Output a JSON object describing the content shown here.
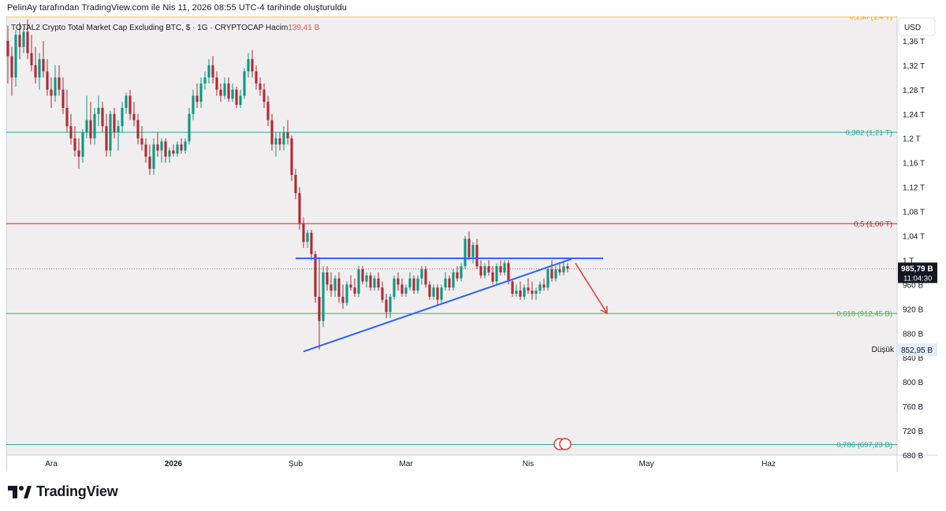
{
  "header": {
    "attribution": "PelinAy tarafından TradingView.com ile Nis 11, 2026 08:55 UTC-4 tarihinde oluşturuldu"
  },
  "legend": {
    "symbol": "TOTAL2",
    "description": "Crypto Total Market Cap Excluding BTC, $ · 1G · CRYPTOCAP",
    "volume_label": "Hacim",
    "volume_value": "139,41 B"
  },
  "currency_button": "USD",
  "branding": {
    "logo_text": "TradingView"
  },
  "colors": {
    "background": "#f0eeef",
    "up_candle": "#089981",
    "down_candle": "#b22833",
    "trendline": "#2962ff",
    "fib_0382": "#22ab94",
    "fib_05": "#b22833",
    "fib_0618": "#4caf50",
    "fib_0786": "#26a69a",
    "arrow": "#e53935"
  },
  "chart_data": {
    "type": "candlestick",
    "y_axis": {
      "unit": "USD",
      "scale": "linear",
      "range": [
        680000000000,
        1400000000000
      ],
      "tick_labels": [
        "1,36 T",
        "1,32 T",
        "1,28 T",
        "1,24 T",
        "1,2 T",
        "1,16 T",
        "1,12 T",
        "1,08 T",
        "1,04 T",
        "1 T",
        "960 B",
        "920 B",
        "880 B",
        "840 B",
        "800 B",
        "760 B",
        "720 B",
        "680 B"
      ]
    },
    "x_axis": {
      "tick_labels": [
        "Ara",
        "2026",
        "Şub",
        "Mar",
        "Nis",
        "May",
        "Haz"
      ],
      "range": [
        "2025-11-20",
        "2026-06-30"
      ]
    },
    "fib_levels": [
      {
        "label": "0,236 (1,4 T)",
        "value": 1400000000000
      },
      {
        "label": "0,382 (1,21 T)",
        "value": 1210000000000
      },
      {
        "label": "0,5 (1,06 T)",
        "value": 1060000000000
      },
      {
        "label": "0,618 (912,45 B)",
        "value": 912450000000
      },
      {
        "label": "0,786 (697,23 B)",
        "value": 697230000000
      }
    ],
    "current_price": {
      "label": "985,79 B",
      "value": 985790000000,
      "countdown": "11:04:30"
    },
    "low_marker": {
      "label": "Düşük",
      "value_label": "852,95 B",
      "value": 852950000000
    },
    "drawings": [
      {
        "type": "horizontal_resistance",
        "from": [
          "2026-02-01",
          1003000000000
        ],
        "to": [
          "2026-04-20",
          1003000000000
        ]
      },
      {
        "type": "ascending_trendline",
        "from": [
          "2026-02-03",
          850000000000
        ],
        "to": [
          "2026-04-12",
          1002000000000
        ]
      },
      {
        "type": "arrow_down",
        "from": [
          "2026-04-13",
          995000000000
        ],
        "to": [
          "2026-04-21",
          913000000000
        ]
      }
    ],
    "candles": [
      [
        "2025-11-20",
        1.36,
        1.385,
        1.29,
        1.335
      ],
      [
        "2025-11-21",
        1.335,
        1.35,
        1.27,
        1.3
      ],
      [
        "2025-11-22",
        1.3,
        1.378,
        1.285,
        1.37
      ],
      [
        "2025-11-23",
        1.37,
        1.39,
        1.33,
        1.35
      ],
      [
        "2025-11-24",
        1.35,
        1.38,
        1.34,
        1.375
      ],
      [
        "2025-11-25",
        1.375,
        1.395,
        1.33,
        1.34
      ],
      [
        "2025-11-26",
        1.34,
        1.37,
        1.31,
        1.32
      ],
      [
        "2025-11-27",
        1.32,
        1.35,
        1.29,
        1.3
      ],
      [
        "2025-11-28",
        1.3,
        1.34,
        1.28,
        1.33
      ],
      [
        "2025-11-29",
        1.33,
        1.36,
        1.3,
        1.31
      ],
      [
        "2025-11-30",
        1.31,
        1.33,
        1.27,
        1.28
      ],
      [
        "2025-12-01",
        1.28,
        1.3,
        1.25,
        1.27
      ],
      [
        "2025-12-02",
        1.27,
        1.32,
        1.26,
        1.3
      ],
      [
        "2025-12-03",
        1.3,
        1.32,
        1.27,
        1.28
      ],
      [
        "2025-12-04",
        1.28,
        1.3,
        1.24,
        1.25
      ],
      [
        "2025-12-05",
        1.25,
        1.28,
        1.21,
        1.22
      ],
      [
        "2025-12-06",
        1.22,
        1.24,
        1.19,
        1.2
      ],
      [
        "2025-12-07",
        1.2,
        1.22,
        1.17,
        1.18
      ],
      [
        "2025-12-08",
        1.18,
        1.2,
        1.15,
        1.17
      ],
      [
        "2025-12-09",
        1.17,
        1.215,
        1.16,
        1.21
      ],
      [
        "2025-12-10",
        1.21,
        1.27,
        1.2,
        1.23
      ],
      [
        "2025-12-11",
        1.23,
        1.26,
        1.19,
        1.2
      ],
      [
        "2025-12-12",
        1.2,
        1.25,
        1.19,
        1.24
      ],
      [
        "2025-12-13",
        1.24,
        1.27,
        1.22,
        1.25
      ],
      [
        "2025-12-14",
        1.25,
        1.26,
        1.21,
        1.22
      ],
      [
        "2025-12-15",
        1.22,
        1.24,
        1.17,
        1.18
      ],
      [
        "2025-12-16",
        1.18,
        1.245,
        1.17,
        1.24
      ],
      [
        "2025-12-17",
        1.24,
        1.25,
        1.2,
        1.21
      ],
      [
        "2025-12-18",
        1.21,
        1.23,
        1.18,
        1.22
      ],
      [
        "2025-12-19",
        1.22,
        1.26,
        1.21,
        1.25
      ],
      [
        "2025-12-20",
        1.25,
        1.275,
        1.24,
        1.27
      ],
      [
        "2025-12-21",
        1.27,
        1.28,
        1.23,
        1.24
      ],
      [
        "2025-12-22",
        1.24,
        1.26,
        1.22,
        1.23
      ],
      [
        "2025-12-23",
        1.23,
        1.24,
        1.19,
        1.2
      ],
      [
        "2025-12-24",
        1.2,
        1.22,
        1.18,
        1.19
      ],
      [
        "2025-12-25",
        1.19,
        1.2,
        1.16,
        1.17
      ],
      [
        "2025-12-26",
        1.17,
        1.19,
        1.14,
        1.15
      ],
      [
        "2025-12-27",
        1.15,
        1.2,
        1.14,
        1.19
      ],
      [
        "2025-12-28",
        1.19,
        1.21,
        1.17,
        1.18
      ],
      [
        "2025-12-29",
        1.18,
        1.2,
        1.16,
        1.195
      ],
      [
        "2025-12-30",
        1.195,
        1.2,
        1.16,
        1.17
      ],
      [
        "2025-12-31",
        1.17,
        1.185,
        1.16,
        1.18
      ],
      [
        "2026-01-01",
        1.18,
        1.19,
        1.17,
        1.175
      ],
      [
        "2026-01-02",
        1.175,
        1.195,
        1.17,
        1.19
      ],
      [
        "2026-01-03",
        1.19,
        1.2,
        1.175,
        1.18
      ],
      [
        "2026-01-04",
        1.18,
        1.2,
        1.175,
        1.195
      ],
      [
        "2026-01-05",
        1.195,
        1.25,
        1.19,
        1.24
      ],
      [
        "2026-01-06",
        1.24,
        1.28,
        1.23,
        1.27
      ],
      [
        "2026-01-07",
        1.27,
        1.29,
        1.25,
        1.26
      ],
      [
        "2026-01-08",
        1.26,
        1.3,
        1.25,
        1.29
      ],
      [
        "2026-01-09",
        1.29,
        1.31,
        1.28,
        1.3
      ],
      [
        "2026-01-10",
        1.3,
        1.33,
        1.29,
        1.32
      ],
      [
        "2026-01-11",
        1.32,
        1.335,
        1.29,
        1.3
      ],
      [
        "2026-01-12",
        1.3,
        1.31,
        1.27,
        1.28
      ],
      [
        "2026-01-13",
        1.28,
        1.29,
        1.26,
        1.27
      ],
      [
        "2026-01-14",
        1.27,
        1.3,
        1.265,
        1.29
      ],
      [
        "2026-01-15",
        1.29,
        1.3,
        1.26,
        1.265
      ],
      [
        "2026-01-16",
        1.265,
        1.29,
        1.26,
        1.28
      ],
      [
        "2026-01-17",
        1.28,
        1.285,
        1.25,
        1.255
      ],
      [
        "2026-01-18",
        1.255,
        1.28,
        1.25,
        1.27
      ],
      [
        "2026-01-19",
        1.27,
        1.315,
        1.265,
        1.31
      ],
      [
        "2026-01-20",
        1.31,
        1.34,
        1.3,
        1.33
      ],
      [
        "2026-01-21",
        1.33,
        1.345,
        1.3,
        1.31
      ],
      [
        "2026-01-22",
        1.31,
        1.32,
        1.28,
        1.29
      ],
      [
        "2026-01-23",
        1.29,
        1.3,
        1.27,
        1.28
      ],
      [
        "2026-01-24",
        1.28,
        1.29,
        1.25,
        1.26
      ],
      [
        "2026-01-25",
        1.26,
        1.27,
        1.22,
        1.23
      ],
      [
        "2026-01-26",
        1.23,
        1.24,
        1.18,
        1.19
      ],
      [
        "2026-01-27",
        1.19,
        1.21,
        1.17,
        1.2
      ],
      [
        "2026-01-28",
        1.2,
        1.21,
        1.18,
        1.19
      ],
      [
        "2026-01-29",
        1.19,
        1.22,
        1.18,
        1.21
      ],
      [
        "2026-01-30",
        1.21,
        1.23,
        1.19,
        1.2
      ],
      [
        "2026-01-31",
        1.2,
        1.205,
        1.13,
        1.14
      ],
      [
        "2026-02-01",
        1.14,
        1.15,
        1.1,
        1.11
      ],
      [
        "2026-02-02",
        1.11,
        1.12,
        1.05,
        1.06
      ],
      [
        "2026-02-03",
        1.06,
        1.07,
        1.02,
        1.03
      ],
      [
        "2026-02-04",
        1.03,
        1.05,
        1.02,
        1.045
      ],
      [
        "2026-02-05",
        1.045,
        1.05,
        1.0,
        1.01
      ],
      [
        "2026-02-06",
        1.01,
        1.015,
        0.93,
        0.94
      ],
      [
        "2026-02-07",
        0.94,
        1.005,
        0.853,
        0.9
      ],
      [
        "2026-02-08",
        0.9,
        0.99,
        0.89,
        0.98
      ],
      [
        "2026-02-09",
        0.98,
        0.99,
        0.95,
        0.96
      ],
      [
        "2026-02-10",
        0.96,
        0.98,
        0.94,
        0.95
      ],
      [
        "2026-02-11",
        0.95,
        0.975,
        0.94,
        0.97
      ],
      [
        "2026-02-12",
        0.97,
        0.98,
        0.93,
        0.94
      ],
      [
        "2026-02-13",
        0.94,
        0.96,
        0.92,
        0.93
      ],
      [
        "2026-02-14",
        0.93,
        0.965,
        0.925,
        0.96
      ],
      [
        "2026-02-15",
        0.96,
        0.975,
        0.95,
        0.955
      ],
      [
        "2026-02-16",
        0.955,
        0.97,
        0.94,
        0.945
      ],
      [
        "2026-02-17",
        0.945,
        0.99,
        0.94,
        0.985
      ],
      [
        "2026-02-18",
        0.985,
        0.99,
        0.96,
        0.965
      ],
      [
        "2026-02-19",
        0.965,
        0.98,
        0.955,
        0.975
      ],
      [
        "2026-02-20",
        0.975,
        0.98,
        0.95,
        0.955
      ],
      [
        "2026-02-21",
        0.955,
        0.975,
        0.95,
        0.97
      ],
      [
        "2026-02-22",
        0.97,
        0.98,
        0.95,
        0.955
      ],
      [
        "2026-02-23",
        0.955,
        0.965,
        0.93,
        0.935
      ],
      [
        "2026-02-24",
        0.935,
        0.945,
        0.905,
        0.915
      ],
      [
        "2026-02-25",
        0.915,
        0.945,
        0.905,
        0.94
      ],
      [
        "2026-02-26",
        0.94,
        0.975,
        0.935,
        0.97
      ],
      [
        "2026-02-27",
        0.97,
        0.98,
        0.95,
        0.96
      ],
      [
        "2026-02-28",
        0.96,
        0.97,
        0.94,
        0.945
      ],
      [
        "2026-03-01",
        0.945,
        0.96,
        0.94,
        0.955
      ],
      [
        "2026-03-02",
        0.955,
        0.98,
        0.95,
        0.97
      ],
      [
        "2026-03-03",
        0.97,
        0.975,
        0.945,
        0.95
      ],
      [
        "2026-03-04",
        0.95,
        0.975,
        0.945,
        0.97
      ],
      [
        "2026-03-05",
        0.97,
        0.99,
        0.96,
        0.985
      ],
      [
        "2026-03-06",
        0.985,
        0.99,
        0.955,
        0.96
      ],
      [
        "2026-03-07",
        0.96,
        0.965,
        0.935,
        0.94
      ],
      [
        "2026-03-08",
        0.94,
        0.96,
        0.935,
        0.955
      ],
      [
        "2026-03-09",
        0.955,
        0.96,
        0.925,
        0.935
      ],
      [
        "2026-03-10",
        0.935,
        0.96,
        0.93,
        0.955
      ],
      [
        "2026-03-11",
        0.955,
        0.98,
        0.95,
        0.97
      ],
      [
        "2026-03-12",
        0.97,
        0.975,
        0.95,
        0.955
      ],
      [
        "2026-03-13",
        0.955,
        0.985,
        0.95,
        0.98
      ],
      [
        "2026-03-14",
        0.98,
        0.99,
        0.965,
        0.97
      ],
      [
        "2026-03-15",
        0.97,
        0.995,
        0.965,
        0.99
      ],
      [
        "2026-03-16",
        0.99,
        1.04,
        0.985,
        1.035
      ],
      [
        "2026-03-17",
        1.035,
        1.047,
        1.0,
        1.005
      ],
      [
        "2026-03-18",
        1.005,
        1.03,
        0.995,
        1.025
      ],
      [
        "2026-03-19",
        1.025,
        1.035,
        0.985,
        0.99
      ],
      [
        "2026-03-20",
        0.99,
        1.0,
        0.97,
        0.975
      ],
      [
        "2026-03-21",
        0.975,
        0.995,
        0.97,
        0.99
      ],
      [
        "2026-03-22",
        0.99,
        1.0,
        0.975,
        0.98
      ],
      [
        "2026-03-23",
        0.98,
        0.99,
        0.96,
        0.965
      ],
      [
        "2026-03-24",
        0.965,
        0.995,
        0.96,
        0.99
      ],
      [
        "2026-03-25",
        0.99,
        1.0,
        0.975,
        0.98
      ],
      [
        "2026-03-26",
        0.98,
        1.0,
        0.975,
        0.995
      ],
      [
        "2026-03-27",
        0.995,
        1.0,
        0.96,
        0.965
      ],
      [
        "2026-03-28",
        0.965,
        0.97,
        0.94,
        0.945
      ],
      [
        "2026-03-29",
        0.945,
        0.96,
        0.94,
        0.95
      ],
      [
        "2026-03-30",
        0.95,
        0.965,
        0.935,
        0.94
      ],
      [
        "2026-03-31",
        0.94,
        0.96,
        0.935,
        0.955
      ],
      [
        "2026-04-01",
        0.955,
        0.97,
        0.945,
        0.95
      ],
      [
        "2026-04-02",
        0.95,
        0.965,
        0.935,
        0.945
      ],
      [
        "2026-04-03",
        0.945,
        0.955,
        0.935,
        0.95
      ],
      [
        "2026-04-04",
        0.95,
        0.965,
        0.945,
        0.96
      ],
      [
        "2026-04-05",
        0.96,
        0.97,
        0.95,
        0.955
      ],
      [
        "2026-04-06",
        0.955,
        0.99,
        0.95,
        0.985
      ],
      [
        "2026-04-07",
        0.985,
        1.0,
        0.965,
        0.97
      ],
      [
        "2026-04-08",
        0.97,
        0.99,
        0.965,
        0.985
      ],
      [
        "2026-04-09",
        0.985,
        0.995,
        0.975,
        0.98
      ],
      [
        "2026-04-10",
        0.98,
        0.998,
        0.975,
        0.99
      ],
      [
        "2026-04-11",
        0.99,
        0.995,
        0.98,
        0.986
      ]
    ]
  }
}
